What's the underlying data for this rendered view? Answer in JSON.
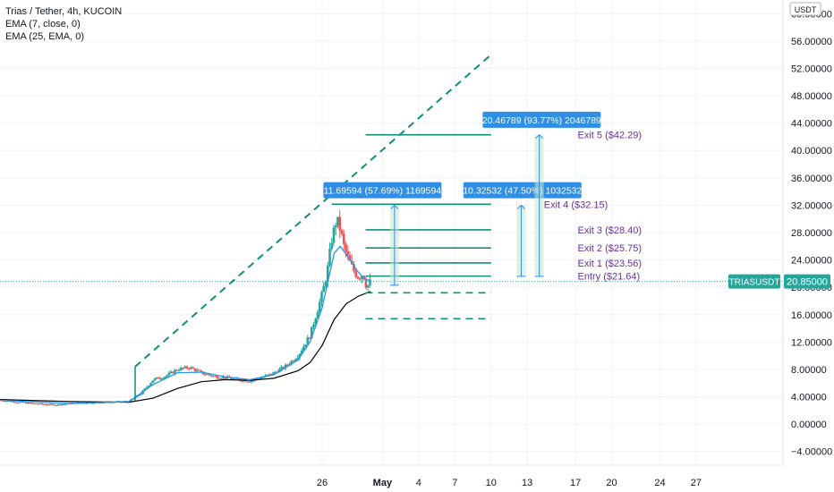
{
  "header": {
    "title": "Trias / Tether, 4h, KUCOIN",
    "indicators": [
      "EMA (7, close, 0)",
      "EMA (25, EMA, 0)"
    ]
  },
  "colors": {
    "up": "#26a69a",
    "down": "#ef5350",
    "ema_fast": "#2196f3",
    "ema_slow": "#000000",
    "levels": "#0e8f76",
    "labels": "#6a2fa0",
    "callout": "#2f8ee5",
    "price_tag": "#26a69a"
  },
  "chart_data": {
    "type": "candlestick",
    "currency": "USDT",
    "ylim": [
      -6,
      62
    ],
    "y_ticks": [
      -4,
      0,
      4,
      8,
      12,
      16,
      20,
      24,
      28,
      32,
      36,
      40,
      44,
      48,
      52,
      56,
      60
    ],
    "y_tick_labels": [
      "−4.00000",
      "0.00000",
      "4.00000",
      "8.00000",
      "12.00000",
      "16.00000",
      "20.00000",
      "24.00000",
      "28.00000",
      "32.00000",
      "36.00000",
      "40.00000",
      "44.00000",
      "48.00000",
      "52.00000",
      "56.00000",
      "60.00000"
    ],
    "x_domain_days": [
      -30.7,
      34.2
    ],
    "x_ticks": [
      {
        "day": -4,
        "label": "26"
      },
      {
        "day": 1,
        "label": "May"
      },
      {
        "day": 4,
        "label": "4"
      },
      {
        "day": 7,
        "label": "7"
      },
      {
        "day": 10,
        "label": "10"
      },
      {
        "day": 13,
        "label": "13"
      },
      {
        "day": 17,
        "label": "17"
      },
      {
        "day": 20,
        "label": "20"
      },
      {
        "day": 24,
        "label": "24"
      },
      {
        "day": 27,
        "label": "27"
      }
    ],
    "last_price": {
      "symbol": "TRIASUSDT",
      "value": "20.85000",
      "y": 20.85
    },
    "anchors": [
      {
        "day": -30.7,
        "close": 3.5
      },
      {
        "day": -28,
        "close": 3.0
      },
      {
        "day": -26,
        "close": 2.8
      },
      {
        "day": -25,
        "close": 3.0
      },
      {
        "day": -24,
        "close": 3.1
      },
      {
        "day": -22,
        "close": 3.2
      },
      {
        "day": -20,
        "close": 3.3
      },
      {
        "day": -19,
        "close": 4.5
      },
      {
        "day": -18.5,
        "close": 5.5
      },
      {
        "day": -18,
        "close": 6.5
      },
      {
        "day": -17,
        "close": 7.0
      },
      {
        "day": -16,
        "close": 8.0
      },
      {
        "day": -15,
        "close": 8.3
      },
      {
        "day": -14,
        "close": 7.5
      },
      {
        "day": -13,
        "close": 7.0
      },
      {
        "day": -12,
        "close": 6.8
      },
      {
        "day": -11,
        "close": 6.5
      },
      {
        "day": -10,
        "close": 6.3
      },
      {
        "day": -9,
        "close": 6.8
      },
      {
        "day": -8,
        "close": 7.5
      },
      {
        "day": -7,
        "close": 8.5
      },
      {
        "day": -6,
        "close": 10.0
      },
      {
        "day": -5.5,
        "close": 11.5
      },
      {
        "day": -5,
        "close": 13.0
      },
      {
        "day": -4.5,
        "close": 16.0
      },
      {
        "day": -4,
        "close": 19.0
      },
      {
        "day": -3.6,
        "close": 22.0
      },
      {
        "day": -3.2,
        "close": 27.0
      },
      {
        "day": -2.8,
        "close": 30.0
      },
      {
        "day": -2.5,
        "close": 28.5
      },
      {
        "day": -2.2,
        "close": 26.0
      },
      {
        "day": -1.8,
        "close": 24.0
      },
      {
        "day": -1.4,
        "close": 22.5
      },
      {
        "day": -1.0,
        "close": 21.5
      },
      {
        "day": -0.6,
        "close": 22.0
      },
      {
        "day": -0.3,
        "close": 20.0
      },
      {
        "day": 0,
        "close": 20.85
      }
    ],
    "ema_fast": [
      [
        -30.7,
        3.5
      ],
      [
        -25,
        3.0
      ],
      [
        -20,
        3.3
      ],
      [
        -18,
        5.8
      ],
      [
        -16,
        7.5
      ],
      [
        -14,
        7.6
      ],
      [
        -12,
        6.9
      ],
      [
        -10,
        6.5
      ],
      [
        -8,
        7.2
      ],
      [
        -6,
        9.4
      ],
      [
        -5,
        12.0
      ],
      [
        -4,
        17.0
      ],
      [
        -3.5,
        21.0
      ],
      [
        -3.0,
        25.0
      ],
      [
        -2.5,
        26.0
      ],
      [
        -2,
        24.8
      ],
      [
        -1.5,
        23.5
      ],
      [
        -1,
        22.2
      ],
      [
        -0.5,
        21.3
      ],
      [
        0,
        20.9
      ]
    ],
    "ema_slow": [
      [
        -30.7,
        3.6
      ],
      [
        -25,
        3.3
      ],
      [
        -20,
        3.2
      ],
      [
        -18,
        3.8
      ],
      [
        -16,
        5.2
      ],
      [
        -14,
        6.2
      ],
      [
        -12,
        6.5
      ],
      [
        -10,
        6.4
      ],
      [
        -8,
        6.7
      ],
      [
        -6,
        7.8
      ],
      [
        -5,
        9.0
      ],
      [
        -4,
        11.5
      ],
      [
        -3,
        15.3
      ],
      [
        -2,
        17.6
      ],
      [
        -1,
        18.7
      ],
      [
        0,
        19.4
      ]
    ],
    "trend_line": {
      "from": [
        -19.5,
        8.4
      ],
      "to": [
        10.0,
        54.0
      ]
    },
    "wedge_line": {
      "from": [
        -19.5,
        8.4
      ],
      "to": [
        -19.5,
        3.4
      ]
    },
    "dashed_supports": [
      {
        "y": 19.2,
        "from": -0.4,
        "to": 10.0
      },
      {
        "y": 15.4,
        "from": -0.4,
        "to": 10.0
      }
    ],
    "levels": [
      {
        "label": "Entry ($21.64)",
        "y": 21.64,
        "from": -0.4,
        "to": 10.0
      },
      {
        "label": "Exit 1 ($23.56)",
        "y": 23.56,
        "from": -0.4,
        "to": 10.0
      },
      {
        "label": "Exit 2 ($25.75)",
        "y": 25.75,
        "from": -0.4,
        "to": 10.0
      },
      {
        "label": "Exit 3 ($28.40)",
        "y": 28.4,
        "from": -0.4,
        "to": 10.0
      },
      {
        "label": "Exit 4 ($32.15)",
        "y": 32.15,
        "from": -3.2,
        "to": 10.0
      },
      {
        "label": "Exit 5 ($42.29)",
        "y": 42.29,
        "from": -0.4,
        "to": 10.0
      }
    ],
    "measure_boxes": [
      {
        "label": "11.69594 (57.69%) 1169594",
        "day": 2.0,
        "y_low": 20.3,
        "y_high": 32.0,
        "box_center": 1.0,
        "box_y": 34.2
      },
      {
        "label": "10.32532 (47.50%) 1032532",
        "day": 12.5,
        "y_low": 21.6,
        "y_high": 32.0,
        "box_center": 12.6,
        "box_y": 34.2
      },
      {
        "label": "20.46789 (93.77%) 2046789",
        "day": 14.0,
        "y_low": 21.6,
        "y_high": 42.3,
        "box_center": 14.2,
        "box_y": 44.5
      }
    ]
  }
}
